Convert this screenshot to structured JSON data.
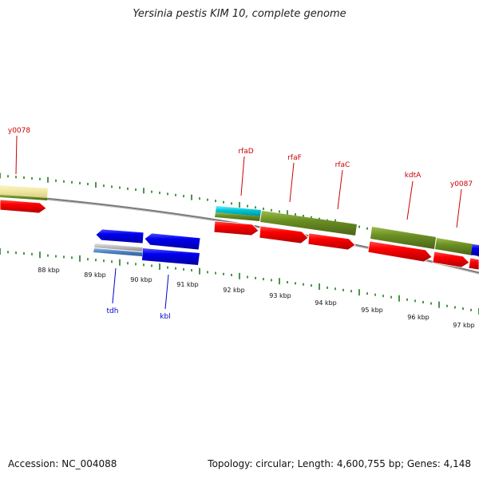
{
  "title": "Yersinia pestis KIM 10, complete genome",
  "footer": {
    "accession_label": "Accession:",
    "accession": "NC_004088",
    "topology_label": "Topology:",
    "topology": "circular",
    "length_label": "Length:",
    "length": "4,600,755 bp",
    "genes_label": "Genes:",
    "genes": "4,148"
  },
  "colors": {
    "forward_gene_label": "#cc0000",
    "reverse_gene_label": "#0000cc",
    "tick": "#1f7a1f",
    "backbone": "#7a7a7a",
    "cds": "#ff0000",
    "reverse_cds": "#0000ee",
    "olive_gene": "#6b8e23",
    "cyan_gene": "#00c8d8",
    "pale_gene": "#f0e6a0",
    "grey_gene": "#b8b8b8"
  },
  "axis": {
    "tick_labels": [
      "88 kbp",
      "89 kbp",
      "90 kbp",
      "91 kbp",
      "92 kbp",
      "93 kbp",
      "94 kbp",
      "95 kbp",
      "96 kbp",
      "97 kbp"
    ]
  },
  "gene_labels": [
    {
      "text": "y0078",
      "strand": "forward"
    },
    {
      "text": "rfaD",
      "strand": "forward"
    },
    {
      "text": "rfaF",
      "strand": "forward"
    },
    {
      "text": "rfaC",
      "strand": "forward"
    },
    {
      "text": "kdtA",
      "strand": "forward"
    },
    {
      "text": "y0087",
      "strand": "forward"
    },
    {
      "text": "tdh",
      "strand": "reverse"
    },
    {
      "text": "kbl",
      "strand": "reverse"
    }
  ]
}
